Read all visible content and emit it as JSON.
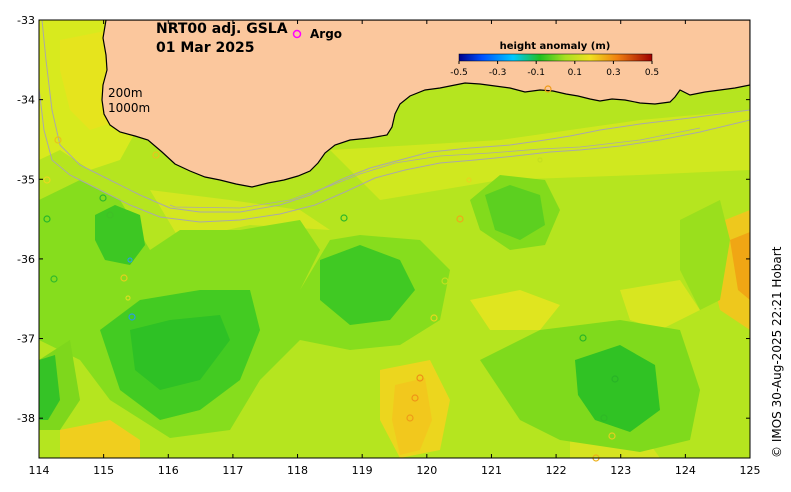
{
  "map": {
    "title_line1": "NRT00 adj. GSLA",
    "title_line2": "01 Mar 2025",
    "legend_argo": "Argo",
    "isobath_200": "200m",
    "isobath_1000": "1000m",
    "credit": "© IMOS 30-Aug-2025 22:21 Hobart",
    "colorbar": {
      "title": "height anomaly (m)",
      "ticks": [
        "-0.5",
        "-0.3",
        "-0.1",
        "0.1",
        "0.3",
        "0.5"
      ]
    },
    "lon_ticks": [
      "114",
      "115",
      "116",
      "117",
      "118",
      "119",
      "120",
      "121",
      "122",
      "123",
      "124",
      "125"
    ],
    "lat_ticks": [
      "-33",
      "-34",
      "-35",
      "-36",
      "-37",
      "-38"
    ],
    "colors": {
      "land": "#fbc79d",
      "base_field": "#b9e81a",
      "high_anomaly": "#f5d41c",
      "low_anomaly": "#21c42a",
      "argo_marker": "#ff00ff",
      "isobath": "#a9a9a9"
    },
    "lon_range": [
      114,
      125
    ],
    "lat_range": [
      -38.5,
      -33
    ]
  }
}
